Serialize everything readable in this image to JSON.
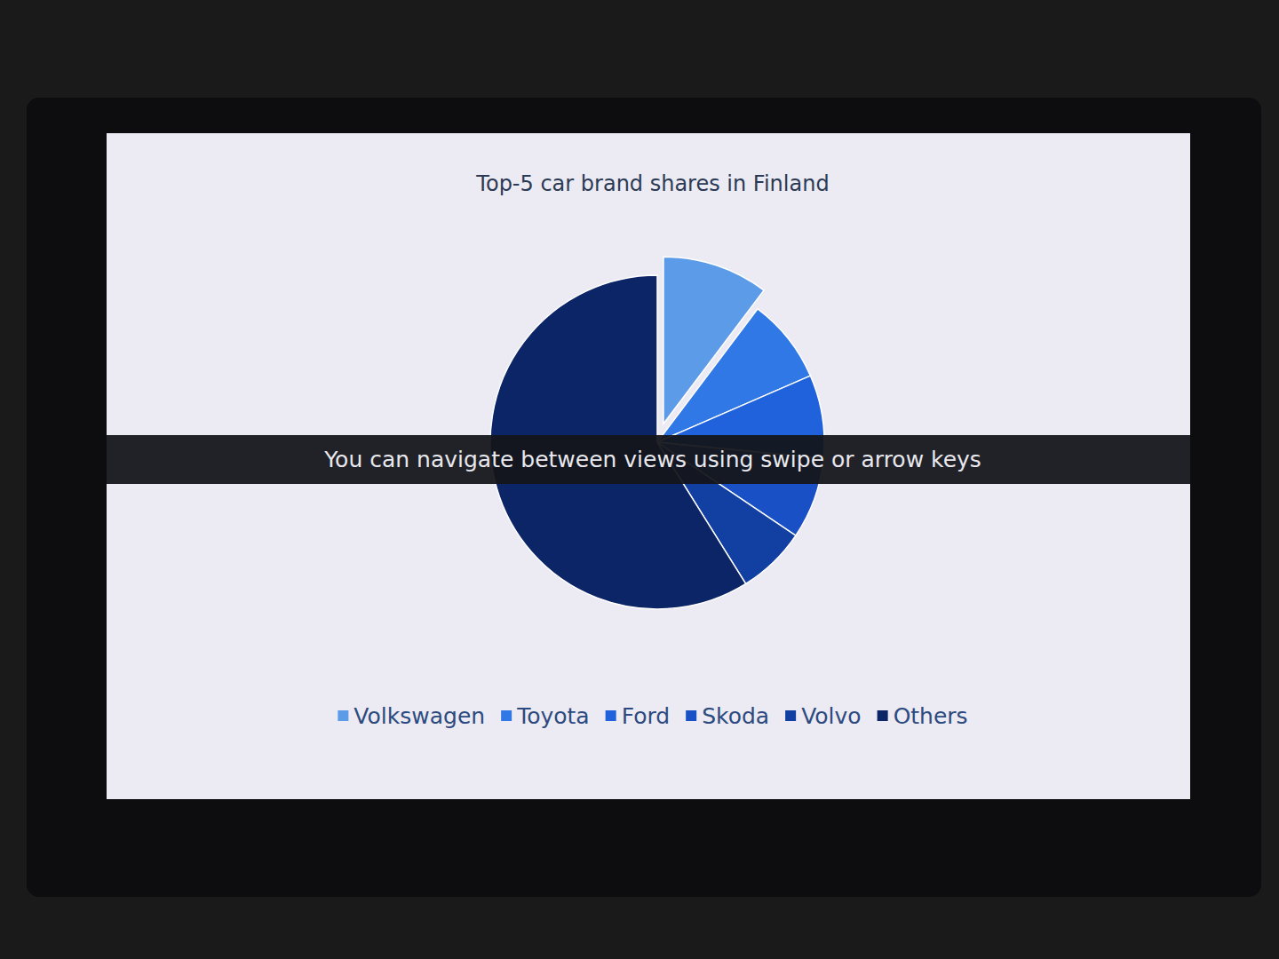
{
  "chart_data": {
    "type": "pie",
    "title": "Top-5 car brand shares in Finland",
    "categories": [
      "Volkswagen",
      "Toyota",
      "Ford",
      "Skoda",
      "Volvo",
      "Others"
    ],
    "values": [
      10.27,
      8.21,
      8.09,
      7.87,
      6.67,
      58.89
    ],
    "colors": [
      "#5b9be8",
      "#2f78e6",
      "#1f62dc",
      "#1a50c6",
      "#123fa2",
      "#0b2566"
    ],
    "legend": "bottom",
    "annotations": [
      "You can navigate between views using swipe or arrow keys"
    ]
  }
}
